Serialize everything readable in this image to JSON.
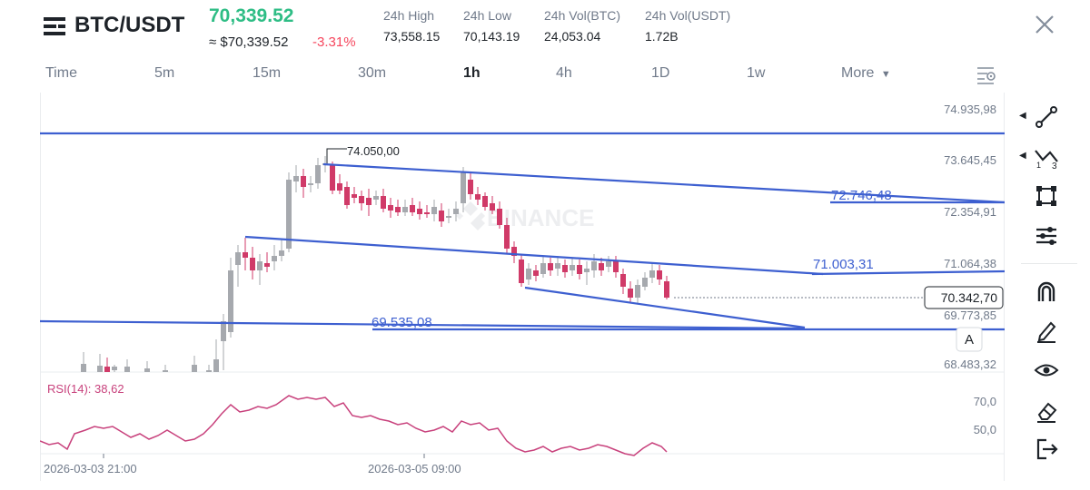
{
  "header": {
    "title": "BTC/USDT",
    "price": "70,339.52",
    "fiat_price": "≈ $70,339.52",
    "change_pct": "-3.31%",
    "stats": [
      {
        "label": "24h High",
        "value": "73,558.15"
      },
      {
        "label": "24h Low",
        "value": "70,143.19"
      },
      {
        "label": "24h Vol(BTC)",
        "value": "24,053.04"
      },
      {
        "label": "24h Vol(USDT)",
        "value": "1.72B"
      }
    ]
  },
  "timeframes": {
    "items": [
      "Time",
      "5m",
      "15m",
      "30m",
      "1h",
      "4h",
      "1D",
      "1w",
      "More"
    ],
    "active": "1h"
  },
  "chart": {
    "price_levels": [
      "74.935,98",
      "73.645,45",
      "72.354,91",
      "71.064,38",
      "69.773,85",
      "68.483,32"
    ],
    "current_price": "70.342,70",
    "drawing_labels": [
      "74.050,00",
      "72.746,48",
      "71.003,31",
      "69.535,08"
    ],
    "rsi_label": "RSI(14): 38,62",
    "rsi_levels": [
      "70,0",
      "50,0"
    ],
    "time_labels": [
      "2026-03-03 21:00",
      "2026-03-05 09:00"
    ],
    "alert_marker": "A",
    "watermark": "BINANCE"
  },
  "colors": {
    "up": "#2ebd85",
    "down": "#f6465d",
    "candle_up": "#a6a9ae",
    "candle_down": "#d03a68",
    "line": "#3d5fd0",
    "rsi": "#c8417c"
  },
  "toolbar": {
    "tools": [
      "trend-line-tool",
      "fib-tool",
      "rectangle-tool",
      "indicator-settings-tool",
      "magnet-tool",
      "pencil-tool",
      "visibility-tool",
      "eraser-tool",
      "exit-tool"
    ]
  }
}
